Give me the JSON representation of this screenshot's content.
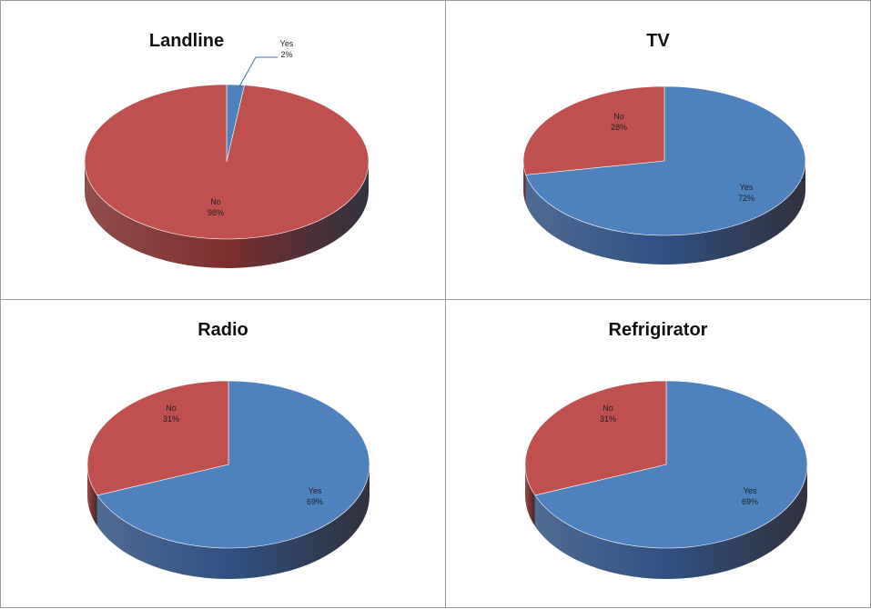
{
  "chart_data": [
    {
      "type": "pie",
      "title": "Landline",
      "slices": [
        {
          "label": "Yes",
          "value": 2,
          "display": "2%"
        },
        {
          "label": "No",
          "value": 98,
          "display": "98%"
        }
      ]
    },
    {
      "type": "pie",
      "title": "TV",
      "slices": [
        {
          "label": "Yes",
          "value": 72,
          "display": "72%"
        },
        {
          "label": "No",
          "value": 28,
          "display": "28%"
        }
      ]
    },
    {
      "type": "pie",
      "title": "Radio",
      "slices": [
        {
          "label": "Yes",
          "value": 69,
          "display": "69%"
        },
        {
          "label": "No",
          "value": 31,
          "display": "31%"
        }
      ]
    },
    {
      "type": "pie",
      "title": "Refrigirator",
      "slices": [
        {
          "label": "Yes",
          "value": 69,
          "display": "69%"
        },
        {
          "label": "No",
          "value": 31,
          "display": "31%"
        }
      ]
    }
  ],
  "colors": {
    "yes_top": "#4f81bd",
    "yes_side": "#2f5180",
    "no_top": "#c0504d",
    "no_side": "#7c2f2d"
  }
}
